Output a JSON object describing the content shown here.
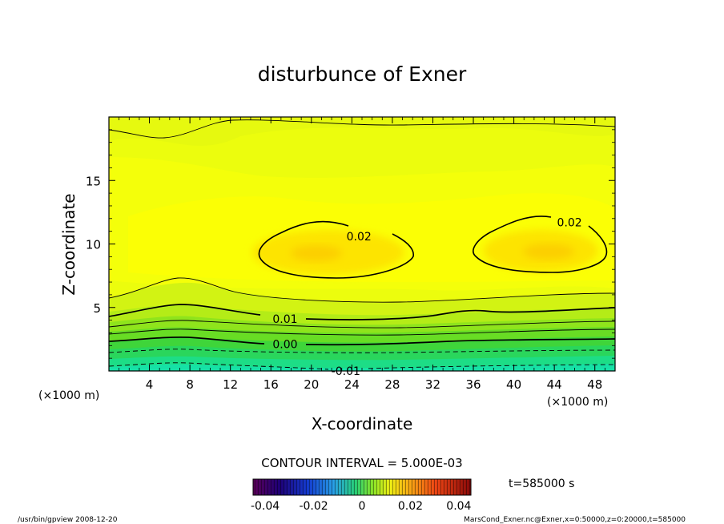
{
  "chart_data": {
    "type": "contour",
    "title": "disturbunce of Exner",
    "xlabel": "X-coordinate",
    "ylabel": "Z-coordinate",
    "xunit": "(×1000 m)",
    "yunit": "(×1000 m)",
    "xlim": [
      0,
      50
    ],
    "ylim": [
      0,
      20
    ],
    "xticks": [
      4,
      8,
      12,
      16,
      20,
      24,
      28,
      32,
      36,
      40,
      44,
      48
    ],
    "yticks": [
      5,
      10,
      15
    ],
    "contour_interval_label": "CONTOUR INTERVAL = 5.000E-03",
    "contour_labels": [
      {
        "text": "0.02",
        "x": 24.7,
        "z": 10.6
      },
      {
        "text": "0.02",
        "x": 45.5,
        "z": 11.7
      },
      {
        "text": "0.01",
        "x": 17.4,
        "z": 4.1
      },
      {
        "text": "0.00",
        "x": 17.4,
        "z": 2.1
      },
      {
        "text": "-0.01",
        "x": 23.4,
        "z": 0.0
      }
    ],
    "colorbar": {
      "ticks": [
        "-0.04",
        "-0.02",
        "0",
        "0.02",
        "0.04"
      ],
      "range": [
        -0.045,
        0.045
      ]
    },
    "time_label": "t=585000 s"
  },
  "footer": {
    "left": "/usr/bin/gpview   2008-12-20",
    "right": "MarsCond_Exner.nc@Exner,x=0:50000,z=0:20000,t=585000"
  }
}
